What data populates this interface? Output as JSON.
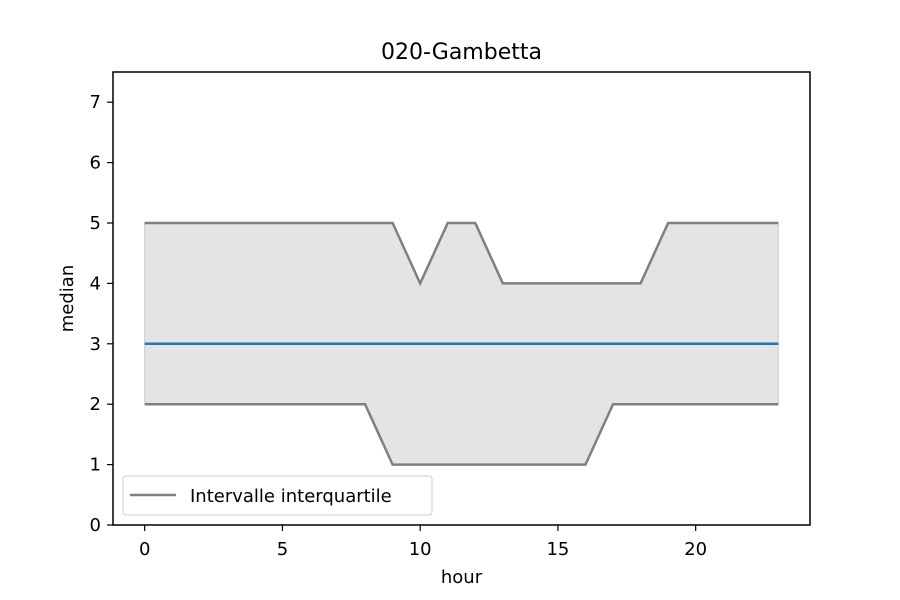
{
  "chart_data": {
    "type": "line",
    "title": "020-Gambetta",
    "xlabel": "hour",
    "ylabel": "median",
    "xlim": [
      -1.15,
      24.15
    ],
    "ylim": [
      0,
      7.5
    ],
    "xticks": [
      0,
      5,
      10,
      15,
      20
    ],
    "yticks": [
      0,
      1,
      2,
      3,
      4,
      5,
      6,
      7
    ],
    "x": [
      0,
      1,
      2,
      3,
      4,
      5,
      6,
      7,
      8,
      9,
      10,
      11,
      12,
      13,
      14,
      15,
      16,
      17,
      18,
      19,
      20,
      21,
      22,
      23
    ],
    "series": [
      {
        "role": "median",
        "values": [
          3,
          3,
          3,
          3,
          3,
          3,
          3,
          3,
          3,
          3,
          3,
          3,
          3,
          3,
          3,
          3,
          3,
          3,
          3,
          3,
          3,
          3,
          3,
          3
        ]
      },
      {
        "role": "q3",
        "values": [
          5,
          5,
          5,
          5,
          5,
          5,
          5,
          5,
          5,
          5,
          4,
          5,
          5,
          4,
          4,
          4,
          4,
          4,
          4,
          5,
          5,
          5,
          5,
          5
        ]
      },
      {
        "role": "q1",
        "values": [
          2,
          2,
          2,
          2,
          2,
          2,
          2,
          2,
          2,
          1,
          1,
          1,
          1,
          1,
          1,
          1,
          1,
          2,
          2,
          2,
          2,
          2,
          2,
          2
        ]
      }
    ],
    "legend": {
      "label": "Intervalle interquartile",
      "position": "lower-left"
    },
    "grid": false,
    "colors": {
      "median": "#1f77b4",
      "band_line": "#808080",
      "band_fill": "#e4e4e4"
    }
  }
}
